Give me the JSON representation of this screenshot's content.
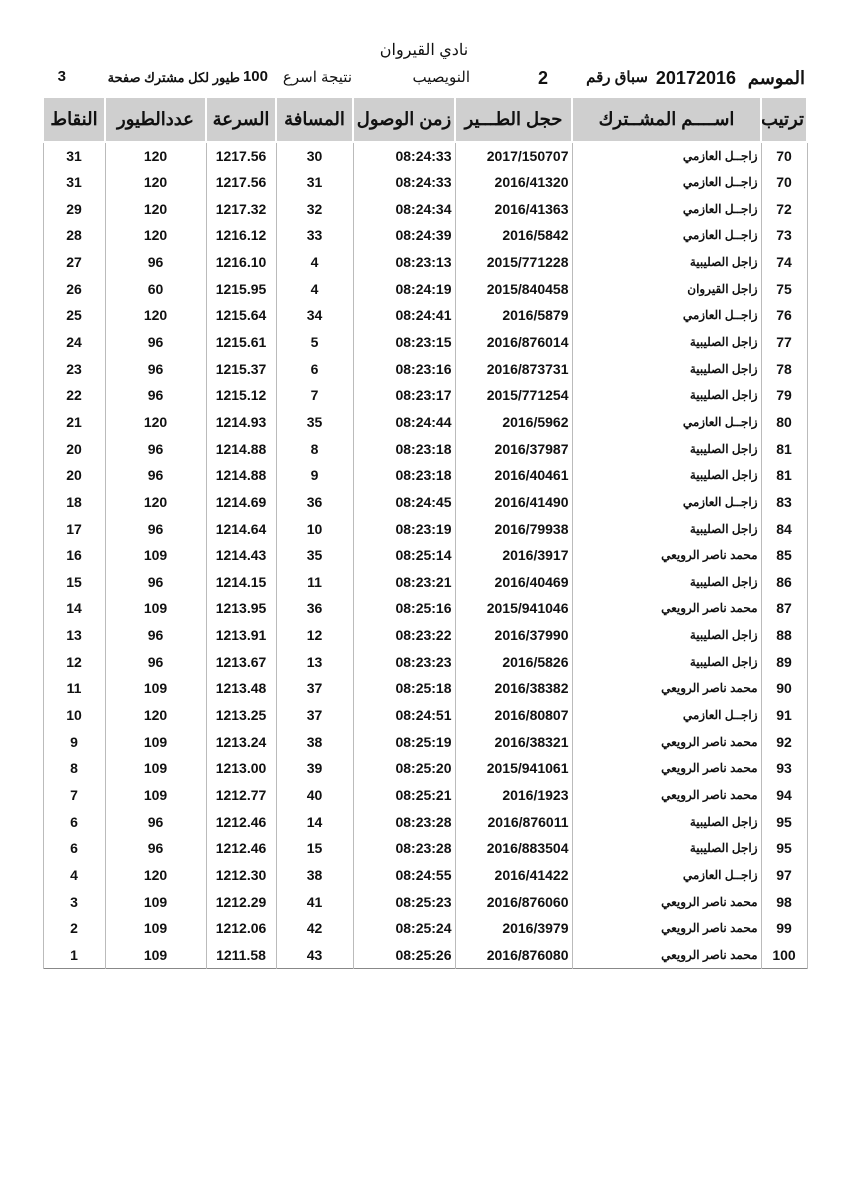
{
  "header": {
    "title": "نادي القيروان",
    "season_label": "الموسم",
    "season_value": "20172016",
    "race_label": "سباق رقم",
    "race_value": "2",
    "location": "النويصيب",
    "result_label": "نتيجة اسرع",
    "birds_limit": "100",
    "birds_label": "طيور لكل مشترك صفحة",
    "page_number": "3"
  },
  "table": {
    "columns": [
      "ترتيب",
      "اســــم المشــترك",
      "حجل الطـــير",
      "زمن الوصول",
      "المسافة",
      "السرعة",
      "عددالطيور",
      "النقاط"
    ],
    "rows": [
      [
        "70",
        "زاجــل العازمي",
        "2017/150707",
        "08:24:33",
        "30",
        "1217.56",
        "120",
        "31"
      ],
      [
        "70",
        "زاجــل العازمي",
        "2016/41320",
        "08:24:33",
        "31",
        "1217.56",
        "120",
        "31"
      ],
      [
        "72",
        "زاجــل العازمي",
        "2016/41363",
        "08:24:34",
        "32",
        "1217.32",
        "120",
        "29"
      ],
      [
        "73",
        "زاجــل العازمي",
        "2016/5842",
        "08:24:39",
        "33",
        "1216.12",
        "120",
        "28"
      ],
      [
        "74",
        "زاجل الصليبية",
        "2015/771228",
        "08:23:13",
        "4",
        "1216.10",
        "96",
        "27"
      ],
      [
        "75",
        "زاجل القيروان",
        "2015/840458",
        "08:24:19",
        "4",
        "1215.95",
        "60",
        "26"
      ],
      [
        "76",
        "زاجــل العازمي",
        "2016/5879",
        "08:24:41",
        "34",
        "1215.64",
        "120",
        "25"
      ],
      [
        "77",
        "زاجل الصليبية",
        "2016/876014",
        "08:23:15",
        "5",
        "1215.61",
        "96",
        "24"
      ],
      [
        "78",
        "زاجل الصليبية",
        "2016/873731",
        "08:23:16",
        "6",
        "1215.37",
        "96",
        "23"
      ],
      [
        "79",
        "زاجل الصليبية",
        "2015/771254",
        "08:23:17",
        "7",
        "1215.12",
        "96",
        "22"
      ],
      [
        "80",
        "زاجــل العازمي",
        "2016/5962",
        "08:24:44",
        "35",
        "1214.93",
        "120",
        "21"
      ],
      [
        "81",
        "زاجل الصليبية",
        "2016/37987",
        "08:23:18",
        "8",
        "1214.88",
        "96",
        "20"
      ],
      [
        "81",
        "زاجل الصليبية",
        "2016/40461",
        "08:23:18",
        "9",
        "1214.88",
        "96",
        "20"
      ],
      [
        "83",
        "زاجــل العازمي",
        "2016/41490",
        "08:24:45",
        "36",
        "1214.69",
        "120",
        "18"
      ],
      [
        "84",
        "زاجل الصليبية",
        "2016/79938",
        "08:23:19",
        "10",
        "1214.64",
        "96",
        "17"
      ],
      [
        "85",
        "محمد ناصر الرويعي",
        "2016/3917",
        "08:25:14",
        "35",
        "1214.43",
        "109",
        "16"
      ],
      [
        "86",
        "زاجل الصليبية",
        "2016/40469",
        "08:23:21",
        "11",
        "1214.15",
        "96",
        "15"
      ],
      [
        "87",
        "محمد ناصر الرويعي",
        "2015/941046",
        "08:25:16",
        "36",
        "1213.95",
        "109",
        "14"
      ],
      [
        "88",
        "زاجل الصليبية",
        "2016/37990",
        "08:23:22",
        "12",
        "1213.91",
        "96",
        "13"
      ],
      [
        "89",
        "زاجل الصليبية",
        "2016/5826",
        "08:23:23",
        "13",
        "1213.67",
        "96",
        "12"
      ],
      [
        "90",
        "محمد ناصر الرويعي",
        "2016/38382",
        "08:25:18",
        "37",
        "1213.48",
        "109",
        "11"
      ],
      [
        "91",
        "زاجــل العازمي",
        "2016/80807",
        "08:24:51",
        "37",
        "1213.25",
        "120",
        "10"
      ],
      [
        "92",
        "محمد ناصر الرويعي",
        "2016/38321",
        "08:25:19",
        "38",
        "1213.24",
        "109",
        "9"
      ],
      [
        "93",
        "محمد ناصر الرويعي",
        "2015/941061",
        "08:25:20",
        "39",
        "1213.00",
        "109",
        "8"
      ],
      [
        "94",
        "محمد ناصر الرويعي",
        "2016/1923",
        "08:25:21",
        "40",
        "1212.77",
        "109",
        "7"
      ],
      [
        "95",
        "زاجل الصليبية",
        "2016/876011",
        "08:23:28",
        "14",
        "1212.46",
        "96",
        "6"
      ],
      [
        "95",
        "زاجل الصليبية",
        "2016/883504",
        "08:23:28",
        "15",
        "1212.46",
        "96",
        "6"
      ],
      [
        "97",
        "زاجــل العازمي",
        "2016/41422",
        "08:24:55",
        "38",
        "1212.30",
        "120",
        "4"
      ],
      [
        "98",
        "محمد ناصر الرويعي",
        "2016/876060",
        "08:25:23",
        "41",
        "1212.29",
        "109",
        "3"
      ],
      [
        "99",
        "محمد ناصر الرويعي",
        "2016/3979",
        "08:25:24",
        "42",
        "1212.06",
        "109",
        "2"
      ],
      [
        "100",
        "محمد ناصر الرويعي",
        "2016/876080",
        "08:25:26",
        "43",
        "1211.58",
        "109",
        "1"
      ]
    ]
  }
}
